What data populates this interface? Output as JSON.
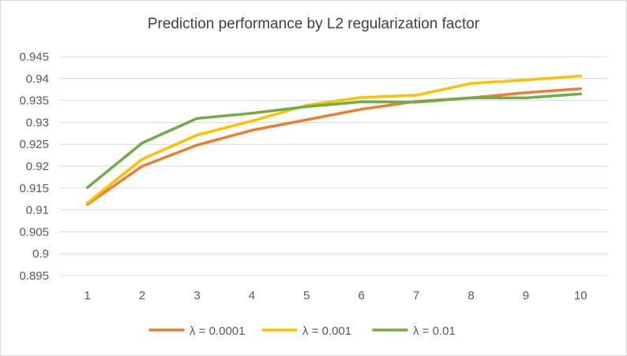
{
  "chart_data": {
    "type": "line",
    "title": "Prediction performance by L2 regularization factor",
    "xlabel": "",
    "ylabel": "",
    "x": [
      "1",
      "2",
      "3",
      "4",
      "5",
      "6",
      "7",
      "8",
      "9",
      "10"
    ],
    "ylim": [
      0.895,
      0.945
    ],
    "yticks": [
      "0.895",
      "0.9",
      "0.905",
      "0.91",
      "0.915",
      "0.92",
      "0.925",
      "0.93",
      "0.935",
      "0.94",
      "0.945"
    ],
    "grid": "horizontal",
    "legend_position": "bottom",
    "series": [
      {
        "name": "λ = 0.0001",
        "color": "#ed7d31",
        "values": [
          0.9113,
          0.92,
          0.9248,
          0.9282,
          0.9306,
          0.933,
          0.9348,
          0.9356,
          0.9368,
          0.9377
        ]
      },
      {
        "name": "λ = 0.001",
        "color": "#ffc000",
        "values": [
          0.9116,
          0.9216,
          0.9271,
          0.9303,
          0.9339,
          0.9357,
          0.9362,
          0.9389,
          0.9397,
          0.9406
        ]
      },
      {
        "name": "λ = 0.01",
        "color": "#70ad47",
        "values": [
          0.9151,
          0.9253,
          0.9309,
          0.9321,
          0.9336,
          0.9347,
          0.9346,
          0.9356,
          0.9356,
          0.9365
        ]
      }
    ]
  }
}
